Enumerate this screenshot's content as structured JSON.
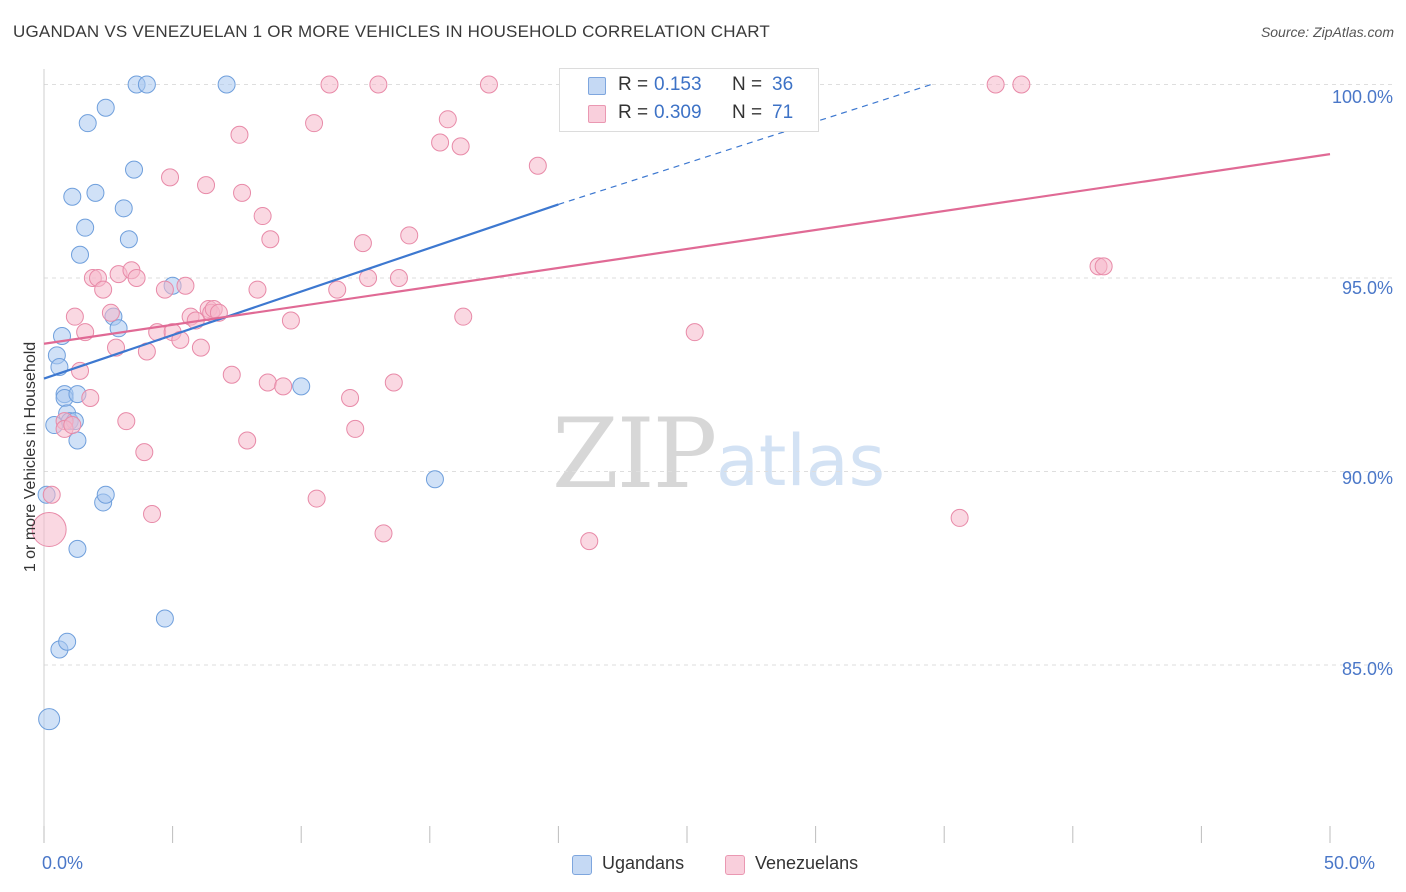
{
  "header": {
    "title": "UGANDAN VS VENEZUELAN 1 OR MORE VEHICLES IN HOUSEHOLD CORRELATION CHART",
    "source": "Source: ZipAtlas.com"
  },
  "watermark": {
    "zip": "ZIP",
    "atlas": "atlas"
  },
  "legend": {
    "r_label": "R =",
    "n_label": "N =",
    "rows": [
      {
        "r": "0.153",
        "n": "36",
        "color": "#aac8f0"
      },
      {
        "r": "0.309",
        "n": "71",
        "color": "#f6b8cb"
      }
    ]
  },
  "bottom_legend": [
    {
      "label": "Ugandans",
      "color": "#aac8f0"
    },
    {
      "label": "Venezuelans",
      "color": "#f6b8cb"
    }
  ],
  "colors": {
    "ugandans_fill": "#aac8f0",
    "ugandans_stroke": "#6f9fdc",
    "ugandans_line": "#3d78d0",
    "venezuelans_fill": "#f6b8cb",
    "venezuelans_stroke": "#e88aa8",
    "venezuelans_line": "#e06a95",
    "tick_text": "#4a77c8",
    "grid": "#dedede"
  },
  "chart_data": {
    "type": "scatter",
    "title": "UGANDAN VS VENEZUELAN 1 OR MORE VEHICLES IN HOUSEHOLD CORRELATION CHART",
    "xlabel": "",
    "ylabel": "1 or more Vehicles in Household",
    "xlim": [
      0,
      50
    ],
    "ylim": [
      80.4,
      100.4
    ],
    "x_tick_labels": [
      "0.0%",
      "50.0%"
    ],
    "y_ticks": [
      {
        "value": 100,
        "label": "100.0%"
      },
      {
        "value": 95,
        "label": "95.0%"
      },
      {
        "value": 90,
        "label": "90.0%"
      },
      {
        "value": 85,
        "label": "85.0%"
      }
    ],
    "grid": true,
    "series": [
      {
        "name": "Ugandans",
        "R": 0.153,
        "N": 36,
        "trend": {
          "solid": [
            [
              0,
              92.4
            ],
            [
              20,
              96.9
            ]
          ],
          "dashed": [
            [
              20,
              96.9
            ],
            [
              34.5,
              100.0
            ]
          ]
        },
        "points": [
          [
            0.2,
            83.6
          ],
          [
            0.4,
            91.2
          ],
          [
            0.5,
            93.0
          ],
          [
            0.6,
            92.7
          ],
          [
            0.6,
            85.4
          ],
          [
            0.7,
            93.5
          ],
          [
            0.8,
            92.0
          ],
          [
            0.8,
            91.9
          ],
          [
            0.9,
            85.6
          ],
          [
            0.9,
            91.5
          ],
          [
            1.0,
            91.3
          ],
          [
            1.1,
            97.1
          ],
          [
            1.2,
            91.3
          ],
          [
            1.3,
            88.0
          ],
          [
            1.3,
            92.0
          ],
          [
            1.3,
            90.8
          ],
          [
            1.4,
            95.6
          ],
          [
            1.6,
            96.3
          ],
          [
            1.7,
            99.0
          ],
          [
            2.0,
            97.2
          ],
          [
            2.3,
            89.2
          ],
          [
            2.4,
            89.4
          ],
          [
            2.4,
            99.4
          ],
          [
            2.7,
            94.0
          ],
          [
            2.9,
            93.7
          ],
          [
            3.1,
            96.8
          ],
          [
            3.3,
            96.0
          ],
          [
            3.5,
            97.8
          ],
          [
            3.6,
            100.0
          ],
          [
            4.0,
            100.0
          ],
          [
            4.7,
            86.2
          ],
          [
            5.0,
            94.8
          ],
          [
            7.1,
            100.0
          ],
          [
            10.0,
            92.2
          ],
          [
            15.2,
            89.8
          ],
          [
            0.1,
            89.4
          ]
        ]
      },
      {
        "name": "Venezuelans",
        "R": 0.309,
        "N": 71,
        "trend": {
          "solid": [
            [
              0,
              93.3
            ],
            [
              50,
              98.2
            ]
          ]
        },
        "points": [
          [
            0.2,
            88.5
          ],
          [
            0.3,
            89.4
          ],
          [
            0.8,
            91.3
          ],
          [
            0.8,
            91.1
          ],
          [
            1.1,
            91.2
          ],
          [
            1.2,
            94.0
          ],
          [
            1.4,
            92.6
          ],
          [
            1.6,
            93.6
          ],
          [
            1.8,
            91.9
          ],
          [
            1.9,
            95.0
          ],
          [
            2.1,
            95.0
          ],
          [
            2.3,
            94.7
          ],
          [
            2.6,
            94.1
          ],
          [
            2.8,
            93.2
          ],
          [
            2.9,
            95.1
          ],
          [
            3.2,
            91.3
          ],
          [
            3.4,
            95.2
          ],
          [
            3.6,
            95.0
          ],
          [
            3.9,
            90.5
          ],
          [
            4.0,
            93.1
          ],
          [
            4.2,
            88.9
          ],
          [
            4.4,
            93.6
          ],
          [
            4.7,
            94.7
          ],
          [
            4.9,
            97.6
          ],
          [
            5.0,
            93.6
          ],
          [
            5.3,
            93.4
          ],
          [
            5.5,
            94.8
          ],
          [
            5.7,
            94.0
          ],
          [
            5.9,
            93.9
          ],
          [
            6.1,
            93.2
          ],
          [
            6.3,
            97.4
          ],
          [
            6.4,
            94.2
          ],
          [
            6.5,
            94.1
          ],
          [
            6.6,
            94.2
          ],
          [
            6.8,
            94.1
          ],
          [
            7.3,
            92.5
          ],
          [
            7.6,
            98.7
          ],
          [
            7.7,
            97.2
          ],
          [
            7.9,
            90.8
          ],
          [
            8.3,
            94.7
          ],
          [
            8.5,
            96.6
          ],
          [
            8.7,
            92.3
          ],
          [
            8.8,
            96.0
          ],
          [
            9.3,
            92.2
          ],
          [
            9.6,
            93.9
          ],
          [
            10.5,
            99.0
          ],
          [
            10.6,
            89.3
          ],
          [
            11.1,
            100.0
          ],
          [
            11.4,
            94.7
          ],
          [
            11.9,
            91.9
          ],
          [
            12.1,
            91.1
          ],
          [
            12.4,
            95.9
          ],
          [
            12.6,
            95.0
          ],
          [
            13.0,
            100.0
          ],
          [
            13.2,
            88.4
          ],
          [
            13.6,
            92.3
          ],
          [
            13.8,
            95.0
          ],
          [
            14.2,
            96.1
          ],
          [
            15.4,
            98.5
          ],
          [
            15.7,
            99.1
          ],
          [
            16.2,
            98.4
          ],
          [
            16.3,
            94.0
          ],
          [
            17.3,
            100.0
          ],
          [
            19.2,
            97.9
          ],
          [
            21.2,
            88.2
          ],
          [
            25.3,
            93.6
          ],
          [
            35.6,
            88.8
          ],
          [
            37.0,
            100.0
          ],
          [
            38.0,
            100.0
          ],
          [
            41.0,
            95.3
          ],
          [
            41.2,
            95.3
          ]
        ]
      }
    ]
  }
}
